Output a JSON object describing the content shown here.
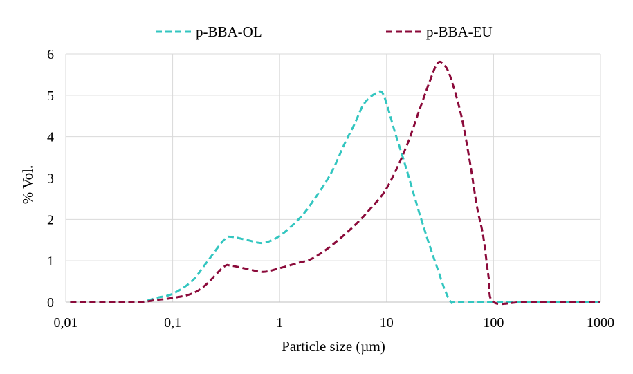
{
  "chart_data": {
    "type": "line",
    "xscale": "log",
    "xlim": [
      0.01,
      1000
    ],
    "ylim": [
      0,
      6
    ],
    "xlabel": "Particle size (µm)",
    "ylabel": "% Vol.",
    "grid": "vertical-and-horizontal",
    "legend_position": "top",
    "x_tick_labels": [
      "0,01",
      "0,1",
      "1",
      "10",
      "100",
      "1000"
    ],
    "x_tick_values": [
      0.01,
      0.1,
      1,
      10,
      100,
      1000
    ],
    "y_tick_labels": [
      "0",
      "1",
      "2",
      "3",
      "4",
      "5",
      "6"
    ],
    "y_tick_values": [
      0,
      1,
      2,
      3,
      4,
      5,
      6
    ],
    "series": [
      {
        "name": "p-BBA-OL",
        "color": "#33c6c0",
        "x": [
          0.011,
          0.03,
          0.05,
          0.07,
          0.1,
          0.15,
          0.2,
          0.3,
          0.35,
          0.5,
          0.7,
          1.0,
          1.5,
          2,
          3,
          4,
          5,
          6,
          7,
          8,
          9,
          10,
          12,
          15,
          20,
          25,
          30,
          35,
          40,
          45,
          100,
          1000
        ],
        "values": [
          0,
          0,
          0,
          0.1,
          0.2,
          0.5,
          0.9,
          1.5,
          1.58,
          1.5,
          1.43,
          1.6,
          2.0,
          2.4,
          3.1,
          3.8,
          4.3,
          4.75,
          4.95,
          5.05,
          5.08,
          4.8,
          4.1,
          3.3,
          2.2,
          1.4,
          0.8,
          0.3,
          0.0,
          0,
          0,
          0
        ]
      },
      {
        "name": "p-BBA-EU",
        "color": "#8b0a3a",
        "x": [
          0.011,
          0.03,
          0.05,
          0.07,
          0.1,
          0.15,
          0.2,
          0.3,
          0.35,
          0.5,
          0.7,
          1.0,
          1.5,
          2,
          3,
          5,
          7,
          10,
          15,
          20,
          25,
          30,
          35,
          40,
          50,
          60,
          70,
          80,
          90,
          100,
          200,
          1000
        ],
        "values": [
          0,
          0,
          0,
          0.05,
          0.1,
          0.2,
          0.4,
          0.85,
          0.88,
          0.8,
          0.73,
          0.82,
          0.95,
          1.05,
          1.35,
          1.85,
          2.25,
          2.75,
          3.7,
          4.6,
          5.3,
          5.78,
          5.72,
          5.4,
          4.5,
          3.4,
          2.3,
          1.6,
          0.6,
          0,
          0,
          0
        ]
      }
    ]
  }
}
